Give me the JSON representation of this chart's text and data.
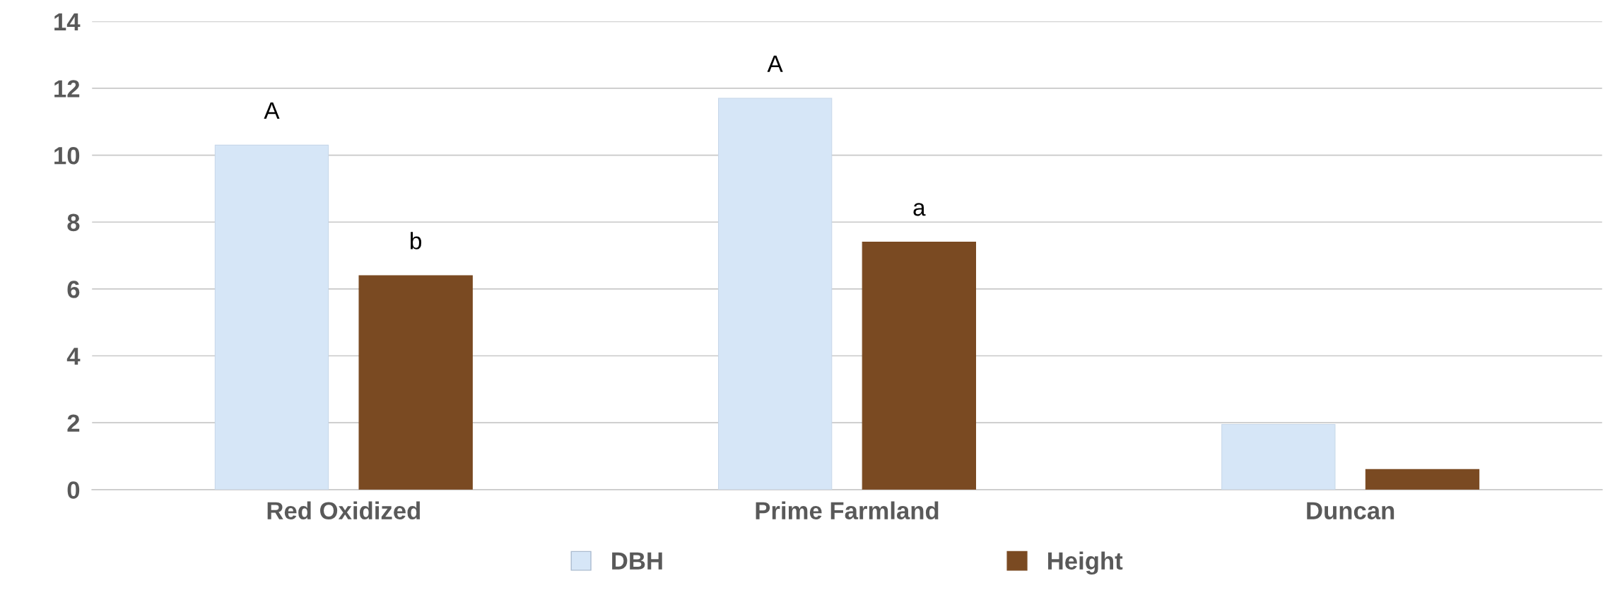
{
  "chart_data": {
    "type": "bar",
    "categories": [
      "Red Oxidized",
      "Prime Farmland",
      "Duncan"
    ],
    "series": [
      {
        "name": "DBH",
        "color": "#d6e6f7",
        "values": [
          10.3,
          11.7,
          1.95
        ]
      },
      {
        "name": "Height",
        "color": "#7a4a22",
        "values": [
          6.4,
          7.4,
          0.6
        ]
      }
    ],
    "ylim": [
      0,
      14
    ],
    "yticks": [
      0,
      2,
      4,
      6,
      8,
      10,
      12,
      14
    ],
    "grid": "y",
    "legend": "bottom",
    "annotations": [
      "A",
      "b",
      "A",
      "a"
    ]
  }
}
